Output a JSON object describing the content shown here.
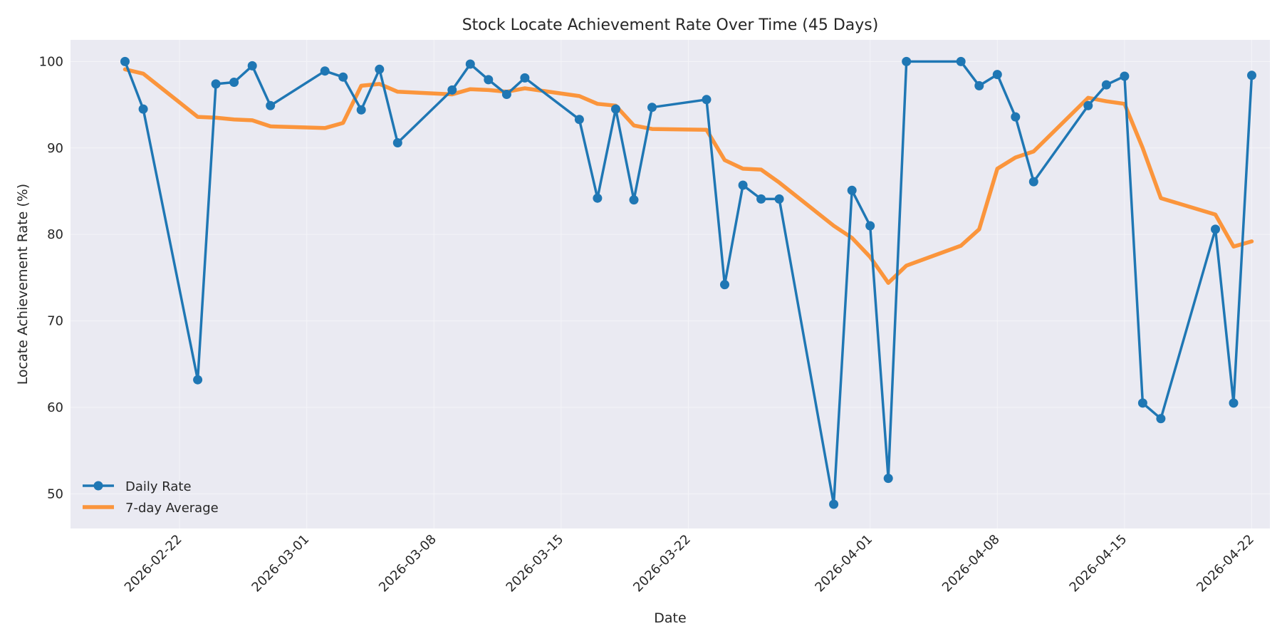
{
  "chart_data": {
    "type": "line",
    "title": "Stock Locate Achievement Rate Over Time (45 Days)",
    "xlabel": "Date",
    "ylabel": "Locate Achievement Rate (%)",
    "x_ticks": [
      "2026-02-22",
      "2026-03-01",
      "2026-03-08",
      "2026-03-15",
      "2026-03-22",
      "2026-04-01",
      "2026-04-08",
      "2026-04-15",
      "2026-04-22"
    ],
    "y_ticks": [
      50,
      60,
      70,
      80,
      90,
      100
    ],
    "xlim": [
      "2026-02-16",
      "2026-04-23"
    ],
    "ylim": [
      46,
      102.5
    ],
    "grid": true,
    "legend_position": "lower-left",
    "colors": {
      "daily": "#1f77b4",
      "average": "#ff7f0e",
      "plot_bg": "#eaeaf2",
      "grid": "#f4f4f8"
    },
    "series": [
      {
        "name": "Daily Rate",
        "style": "line-marker",
        "points": [
          [
            "2026-02-19",
            100.0
          ],
          [
            "2026-02-20",
            94.5
          ],
          [
            "2026-02-23",
            63.2
          ],
          [
            "2026-02-24",
            97.4
          ],
          [
            "2026-02-25",
            97.6
          ],
          [
            "2026-02-26",
            99.5
          ],
          [
            "2026-02-27",
            94.9
          ],
          [
            "2026-03-02",
            98.9
          ],
          [
            "2026-03-03",
            98.2
          ],
          [
            "2026-03-04",
            94.4
          ],
          [
            "2026-03-05",
            99.1
          ],
          [
            "2026-03-06",
            90.6
          ],
          [
            "2026-03-09",
            96.7
          ],
          [
            "2026-03-10",
            99.7
          ],
          [
            "2026-03-11",
            97.9
          ],
          [
            "2026-03-12",
            96.2
          ],
          [
            "2026-03-13",
            98.1
          ],
          [
            "2026-03-16",
            93.3
          ],
          [
            "2026-03-17",
            84.2
          ],
          [
            "2026-03-18",
            94.5
          ],
          [
            "2026-03-19",
            84.0
          ],
          [
            "2026-03-20",
            94.7
          ],
          [
            "2026-03-23",
            95.6
          ],
          [
            "2026-03-24",
            74.2
          ],
          [
            "2026-03-25",
            85.7
          ],
          [
            "2026-03-26",
            84.1
          ],
          [
            "2026-03-27",
            84.1
          ],
          [
            "2026-03-30",
            48.8
          ],
          [
            "2026-03-31",
            85.1
          ],
          [
            "2026-04-01",
            81.0
          ],
          [
            "2026-04-02",
            51.8
          ],
          [
            "2026-04-03",
            100.0
          ],
          [
            "2026-04-06",
            100.0
          ],
          [
            "2026-04-07",
            97.2
          ],
          [
            "2026-04-08",
            98.5
          ],
          [
            "2026-04-09",
            93.6
          ],
          [
            "2026-04-10",
            86.1
          ],
          [
            "2026-04-13",
            94.9
          ],
          [
            "2026-04-14",
            97.3
          ],
          [
            "2026-04-15",
            98.3
          ],
          [
            "2026-04-16",
            60.5
          ],
          [
            "2026-04-17",
            58.7
          ],
          [
            "2026-04-20",
            80.6
          ],
          [
            "2026-04-21",
            60.5
          ],
          [
            "2026-04-22",
            98.4
          ]
        ]
      },
      {
        "name": "7-day Average",
        "style": "line",
        "points": [
          [
            "2026-02-19",
            99.1
          ],
          [
            "2026-02-20",
            98.6
          ],
          [
            "2026-02-23",
            93.6
          ],
          [
            "2026-02-24",
            93.5
          ],
          [
            "2026-02-25",
            93.3
          ],
          [
            "2026-02-26",
            93.2
          ],
          [
            "2026-02-27",
            92.5
          ],
          [
            "2026-03-02",
            92.3
          ],
          [
            "2026-03-03",
            92.9
          ],
          [
            "2026-03-04",
            97.2
          ],
          [
            "2026-03-05",
            97.4
          ],
          [
            "2026-03-06",
            96.5
          ],
          [
            "2026-03-09",
            96.2
          ],
          [
            "2026-03-10",
            96.8
          ],
          [
            "2026-03-11",
            96.7
          ],
          [
            "2026-03-12",
            96.5
          ],
          [
            "2026-03-13",
            96.9
          ],
          [
            "2026-03-16",
            96.0
          ],
          [
            "2026-03-17",
            95.1
          ],
          [
            "2026-03-18",
            94.9
          ],
          [
            "2026-03-19",
            92.6
          ],
          [
            "2026-03-20",
            92.2
          ],
          [
            "2026-03-23",
            92.1
          ],
          [
            "2026-03-24",
            88.6
          ],
          [
            "2026-03-25",
            87.6
          ],
          [
            "2026-03-26",
            87.5
          ],
          [
            "2026-03-27",
            86.0
          ],
          [
            "2026-03-30",
            81.0
          ],
          [
            "2026-03-31",
            79.6
          ],
          [
            "2026-04-01",
            77.4
          ],
          [
            "2026-04-02",
            74.4
          ],
          [
            "2026-04-03",
            76.4
          ],
          [
            "2026-04-06",
            78.7
          ],
          [
            "2026-04-07",
            80.6
          ],
          [
            "2026-04-08",
            87.6
          ],
          [
            "2026-04-09",
            88.9
          ],
          [
            "2026-04-10",
            89.6
          ],
          [
            "2026-04-13",
            95.8
          ],
          [
            "2026-04-14",
            95.4
          ],
          [
            "2026-04-15",
            95.1
          ],
          [
            "2026-04-16",
            90.0
          ],
          [
            "2026-04-17",
            84.2
          ],
          [
            "2026-04-20",
            82.3
          ],
          [
            "2026-04-21",
            78.6
          ],
          [
            "2026-04-22",
            79.2
          ]
        ]
      }
    ]
  }
}
